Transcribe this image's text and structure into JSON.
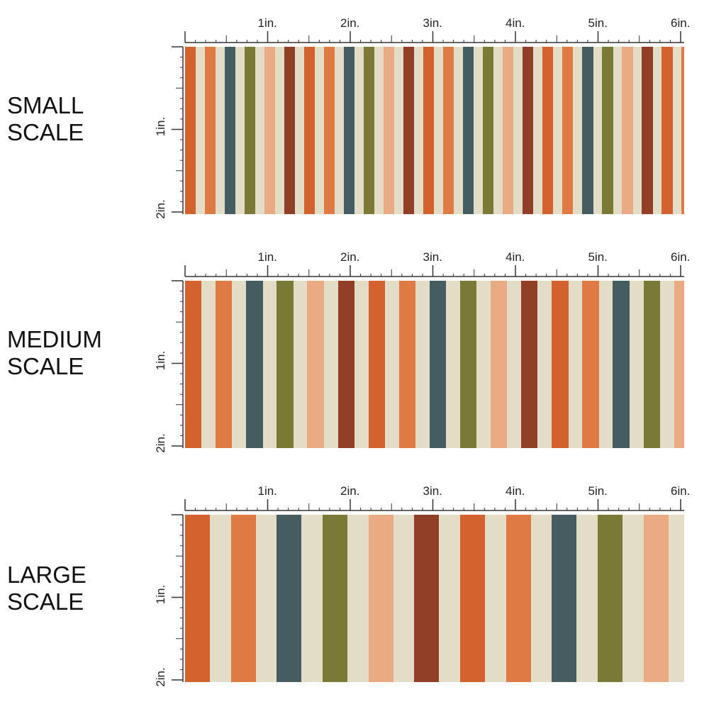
{
  "sections": [
    {
      "id": "small",
      "label_line1": "SMALL",
      "label_line2": "SCALE",
      "stripe_width_in": 0.13
    },
    {
      "id": "medium",
      "label_line1": "MEDIUM",
      "label_line2": "SCALE",
      "stripe_width_in": 0.2
    },
    {
      "id": "large",
      "label_line1": "LARGE",
      "label_line2": "SCALE",
      "stripe_width_in": 0.3
    }
  ],
  "ruler": {
    "horizontal_labels": [
      "1in.",
      "2in.",
      "3in.",
      "4in.",
      "5in.",
      "6in."
    ],
    "vertical_labels": [
      "1in.",
      "2in."
    ]
  },
  "palette": {
    "cream": "#e3dcc6",
    "orange": "#e07a45",
    "burnt_orange": "#d3622f",
    "slate": "#455d60",
    "olive": "#7a7a36",
    "peach": "#eaaa83",
    "rust": "#913f26"
  },
  "stripe_sequence": [
    "burnt_orange",
    "cream",
    "orange",
    "cream",
    "slate",
    "cream",
    "olive",
    "cream",
    "peach",
    "cream",
    "rust",
    "cream",
    "burnt_orange",
    "cream",
    "orange",
    "cream",
    "slate",
    "cream",
    "olive",
    "cream",
    "peach",
    "cream",
    "rust",
    "cream"
  ]
}
